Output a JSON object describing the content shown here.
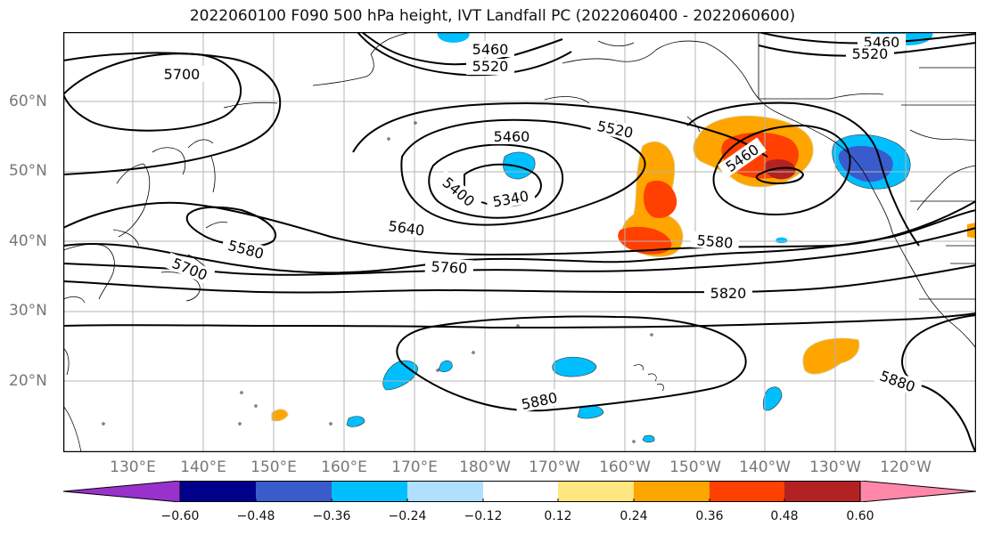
{
  "title": "2022060100 F090 500 hPa height, IVT Landfall PC (2022060400 - 2022060600)",
  "lat_labels": [
    "60°N",
    "50°N",
    "40°N",
    "30°N",
    "20°N"
  ],
  "lon_labels": [
    "130°E",
    "140°E",
    "150°E",
    "160°E",
    "170°E",
    "180°W",
    "170°W",
    "160°W",
    "150°W",
    "140°W",
    "130°W",
    "120°W"
  ],
  "contour_labels": [
    {
      "name": "label-5460-a",
      "text": "5460"
    },
    {
      "name": "label-5520-a",
      "text": "5520"
    },
    {
      "name": "label-5460-b",
      "text": "5460"
    },
    {
      "name": "label-5520-b",
      "text": "5520"
    },
    {
      "name": "label-5700-a",
      "text": "5700"
    },
    {
      "name": "label-5460-c",
      "text": "5460"
    },
    {
      "name": "label-5520-c",
      "text": "5520"
    },
    {
      "name": "label-5400",
      "text": "5400"
    },
    {
      "name": "label-5340",
      "text": "5340"
    },
    {
      "name": "label-5460-d",
      "text": "5460"
    },
    {
      "name": "label-5640",
      "text": "5640"
    },
    {
      "name": "label-5580-a",
      "text": "5580"
    },
    {
      "name": "label-5580-b",
      "text": "5580"
    },
    {
      "name": "label-5700-b",
      "text": "5700"
    },
    {
      "name": "label-5760",
      "text": "5760"
    },
    {
      "name": "label-5820",
      "text": "5820"
    },
    {
      "name": "label-5880-a",
      "text": "5880"
    },
    {
      "name": "label-5880-b",
      "text": "5880"
    }
  ],
  "colorbar": {
    "colors": [
      "#9932cc",
      "#00008b",
      "#3a5bcc",
      "#00bfff",
      "#b0e0ff",
      "#ffffff",
      "#ffe680",
      "#ffa500",
      "#ff4000",
      "#b22222",
      "#ff88aa"
    ],
    "tick_labels": [
      "−0.60",
      "−0.48",
      "−0.36",
      "−0.24",
      "−0.12",
      "0.12",
      "0.24",
      "0.36",
      "0.48",
      "0.60"
    ]
  }
}
